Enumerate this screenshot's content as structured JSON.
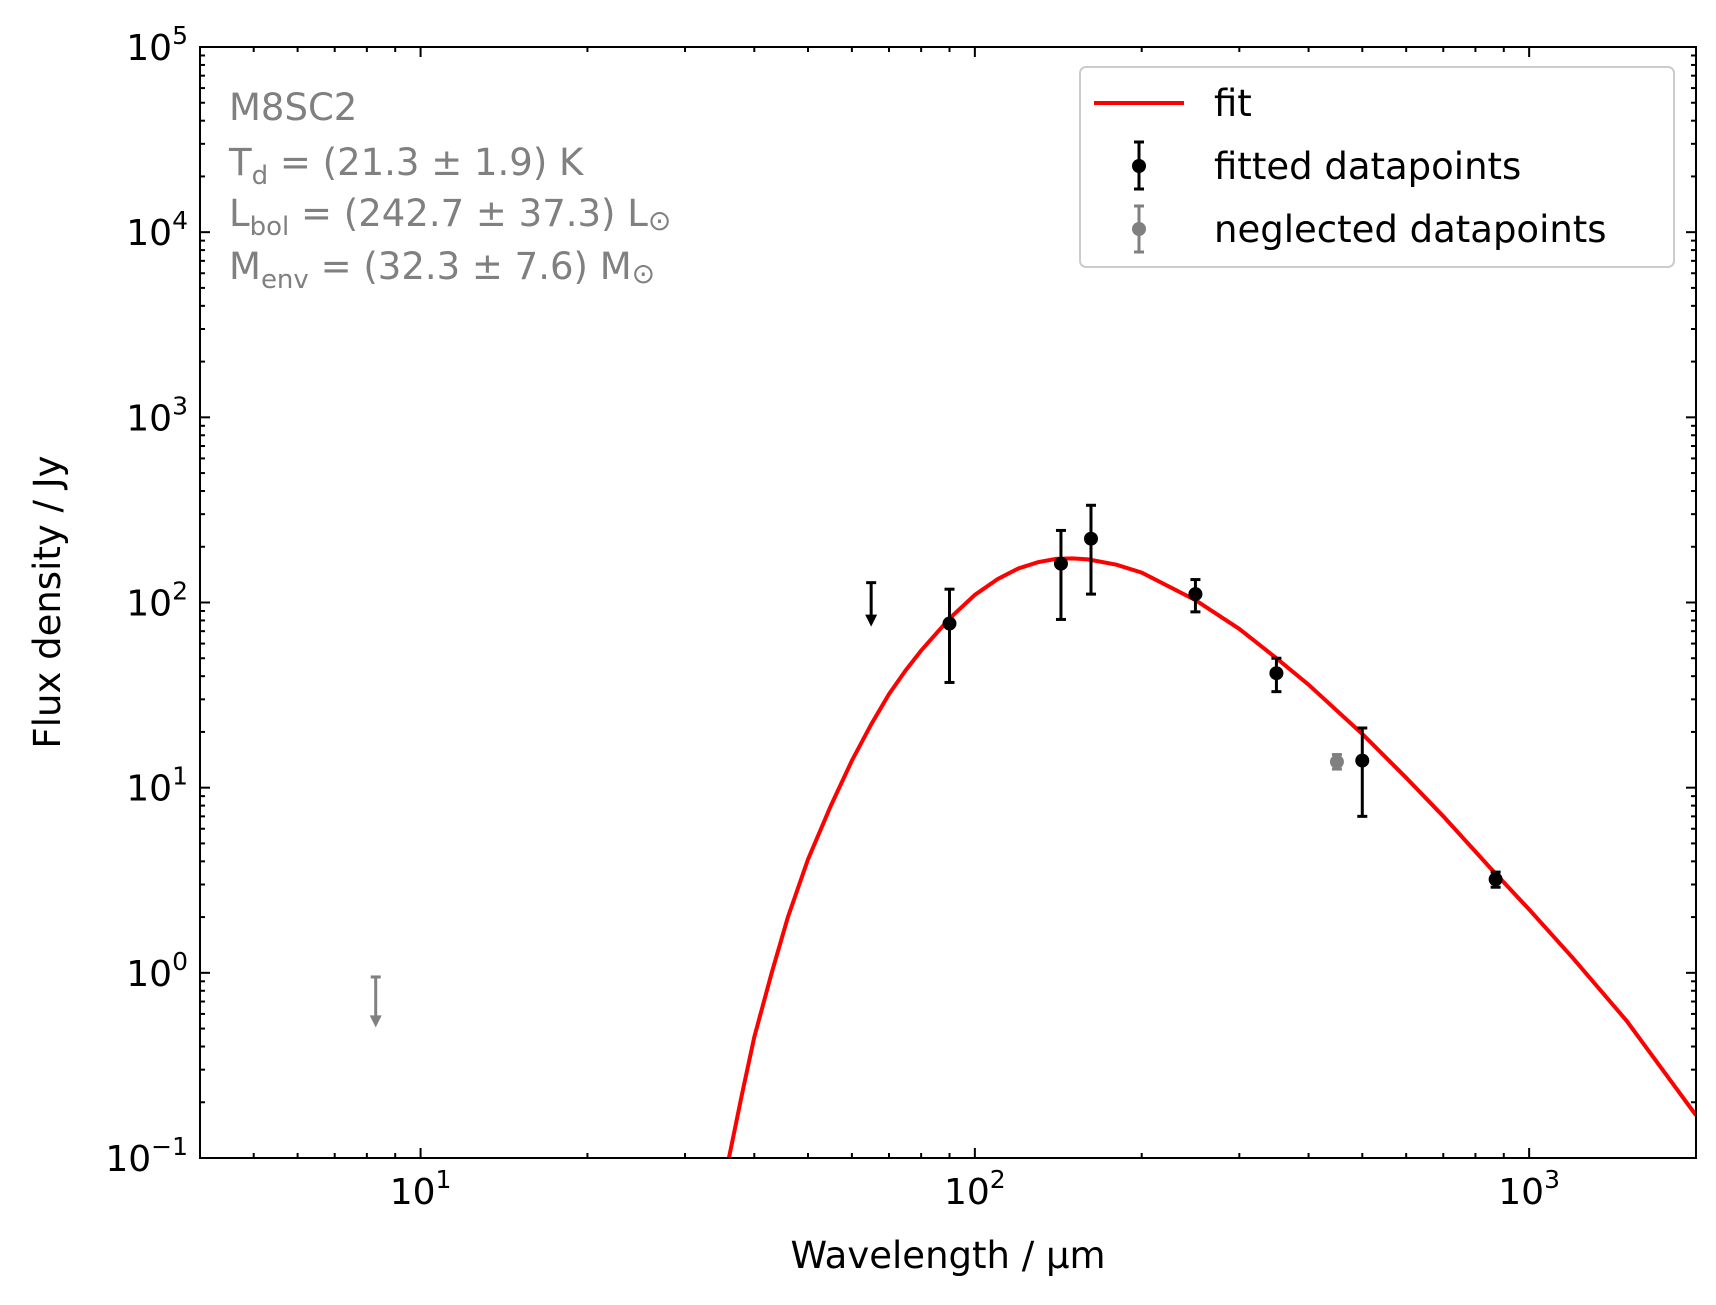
{
  "chart_data": {
    "type": "scatter",
    "xlabel": "Wavelength / μm",
    "ylabel": "Flux density / Jy",
    "xscale": "log",
    "yscale": "log",
    "xlim": [
      4.0,
      2000
    ],
    "ylim": [
      0.1,
      100000
    ],
    "x_ticks": [
      {
        "value": 10,
        "base": "10",
        "exp": "1"
      },
      {
        "value": 100,
        "base": "10",
        "exp": "2"
      },
      {
        "value": 1000,
        "base": "10",
        "exp": "3"
      }
    ],
    "y_ticks": [
      {
        "value": 0.1,
        "base": "10",
        "exp": "−1"
      },
      {
        "value": 1,
        "base": "10",
        "exp": "0"
      },
      {
        "value": 10,
        "base": "10",
        "exp": "1"
      },
      {
        "value": 100,
        "base": "10",
        "exp": "2"
      },
      {
        "value": 1000,
        "base": "10",
        "exp": "3"
      },
      {
        "value": 10000,
        "base": "10",
        "exp": "4"
      },
      {
        "value": 100000,
        "base": "10",
        "exp": "5"
      }
    ],
    "annotation": {
      "name": "M8SC2",
      "Td": {
        "symbol": "T",
        "sub": "d",
        "text": " = (21.3 ± 1.9) K"
      },
      "Lbol": {
        "symbol": "L",
        "sub": "bol",
        "text": " = (242.7 ± 37.3) L",
        "unit": "⊙"
      },
      "Menv": {
        "symbol": "M",
        "sub": "env",
        "text": " = (32.3 ± 7.6) M",
        "unit": "⊙"
      }
    },
    "legend": {
      "position": "upper right",
      "entries": [
        "fit",
        "fitted datapoints",
        "neglected datapoints"
      ]
    },
    "colors": {
      "fit": "#ff0000",
      "fitted": "#000000",
      "neglected": "#808080"
    },
    "series": [
      {
        "name": "fit",
        "kind": "line",
        "x": [
          36.0,
          38,
          40,
          43,
          46,
          50,
          55,
          60,
          65,
          70,
          75,
          80,
          90,
          100,
          110,
          120,
          130,
          140,
          150,
          160,
          180,
          200,
          250,
          300,
          350,
          400,
          500,
          600,
          700,
          850,
          1000,
          1200,
          1500,
          2000
        ],
        "y": [
          0.1,
          0.22,
          0.45,
          1.0,
          2.0,
          4.1,
          8.0,
          14.0,
          22.0,
          32.0,
          43.0,
          55.0,
          82.0,
          110.0,
          134.0,
          153.0,
          165.0,
          172.0,
          173.0,
          171.0,
          160.0,
          145.0,
          103.0,
          72.0,
          50.0,
          36.0,
          19.5,
          11.3,
          7.0,
          3.7,
          2.2,
          1.2,
          0.55,
          0.17
        ]
      },
      {
        "name": "fitted datapoints",
        "kind": "errorbar",
        "points": [
          {
            "x": 90,
            "y": 77,
            "ylow": 37,
            "yhigh": 118
          },
          {
            "x": 143,
            "y": 162,
            "ylow": 81,
            "yhigh": 245
          },
          {
            "x": 162,
            "y": 221,
            "ylow": 111,
            "yhigh": 335
          },
          {
            "x": 250,
            "y": 111,
            "ylow": 89,
            "yhigh": 133
          },
          {
            "x": 350,
            "y": 41.5,
            "ylow": 33,
            "yhigh": 50
          },
          {
            "x": 500,
            "y": 14.0,
            "ylow": 7.0,
            "yhigh": 21.0
          },
          {
            "x": 870,
            "y": 3.2,
            "ylow": 2.9,
            "yhigh": 3.5
          }
        ],
        "upper_limits": [
          {
            "x": 65,
            "ytop": 128,
            "ybottom": 76
          }
        ]
      },
      {
        "name": "neglected datapoints",
        "kind": "errorbar",
        "points": [
          {
            "x": 450,
            "y": 13.8,
            "ylow": 12.6,
            "yhigh": 15.1
          }
        ],
        "upper_limits": [
          {
            "x": 8.3,
            "ytop": 0.95,
            "ybottom": 0.52
          }
        ]
      }
    ]
  }
}
